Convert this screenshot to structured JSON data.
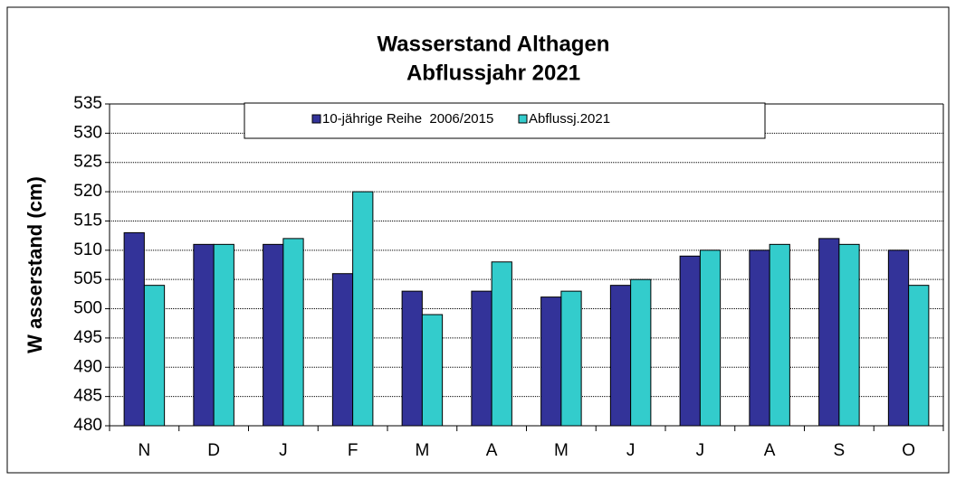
{
  "chart_data": {
    "type": "bar",
    "title": [
      "Wasserstand Althagen",
      "Abflussjahr 2021"
    ],
    "y_label": "W asserstand (cm)",
    "categories": [
      "N",
      "D",
      "J",
      "F",
      "M",
      "A",
      "M",
      "J",
      "J",
      "A",
      "S",
      "O"
    ],
    "series": [
      {
        "name": "10-jährige Reihe  2006/2015",
        "color": "#333399",
        "values": [
          513,
          511,
          511,
          506,
          503,
          503,
          502,
          504,
          509,
          510,
          512,
          510
        ]
      },
      {
        "name": "Abflussj.2021",
        "color": "#33cccc",
        "values": [
          504,
          511,
          512,
          520,
          499,
          508,
          503,
          505,
          510,
          511,
          511,
          504
        ]
      }
    ],
    "ylim": [
      480,
      535
    ],
    "yticks": [
      480,
      485,
      490,
      495,
      500,
      505,
      510,
      515,
      520,
      525,
      530,
      535
    ],
    "grid": true,
    "legend": "top"
  }
}
